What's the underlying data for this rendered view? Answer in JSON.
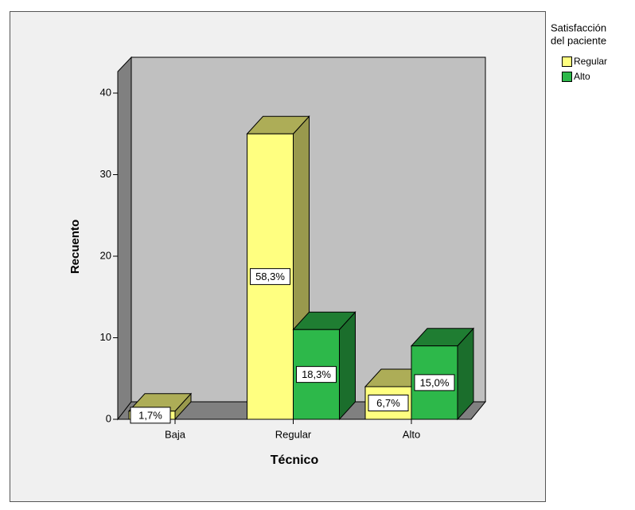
{
  "chart_data": {
    "type": "bar3d",
    "y_label": "Recuento",
    "x_label": "Técnico",
    "legend_title": [
      "Satisfacción",
      "del paciente"
    ],
    "categories": [
      "Baja",
      "Regular",
      "Alto"
    ],
    "series": [
      {
        "name": "Regular",
        "color": "#ffff80",
        "values": [
          1,
          35,
          4
        ],
        "percent_labels": [
          "1,7%",
          "58,3%",
          "6,7%"
        ]
      },
      {
        "name": "Alto",
        "color": "#2db84a",
        "values": [
          null,
          11,
          9
        ],
        "percent_labels": [
          null,
          "18,3%",
          "15,0%"
        ]
      }
    ],
    "ylim": [
      0,
      40
    ],
    "yticks": [
      0,
      10,
      20,
      30,
      40
    ]
  }
}
